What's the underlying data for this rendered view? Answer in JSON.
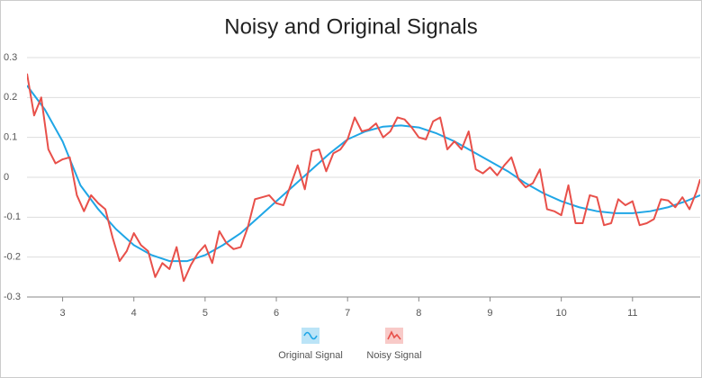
{
  "chart_data": {
    "type": "line",
    "title": "Noisy and Original Signals",
    "xlim": [
      2.5,
      11.95
    ],
    "xticks": [
      3,
      4,
      5,
      6,
      7,
      8,
      9,
      10,
      11
    ],
    "ylim": [
      -0.3,
      0.3
    ],
    "yticks": [
      -0.3,
      -0.2,
      -0.1,
      0,
      0.1,
      0.2,
      0.3
    ],
    "grid": true,
    "legend": "bottom",
    "series": [
      {
        "name": "Original Signal",
        "color": "#1fa6e6",
        "x": [
          2.5,
          2.75,
          3,
          3.25,
          3.5,
          3.75,
          4,
          4.25,
          4.5,
          4.75,
          5,
          5.25,
          5.5,
          5.75,
          6,
          6.25,
          6.5,
          6.75,
          7,
          7.25,
          7.5,
          7.75,
          8,
          8.25,
          8.5,
          8.75,
          9,
          9.25,
          9.5,
          9.75,
          10,
          10.25,
          10.5,
          10.75,
          11,
          11.25,
          11.5,
          11.75,
          11.95
        ],
        "values": [
          0.23,
          0.17,
          0.09,
          -0.02,
          -0.08,
          -0.13,
          -0.17,
          -0.195,
          -0.21,
          -0.21,
          -0.195,
          -0.17,
          -0.14,
          -0.1,
          -0.06,
          -0.02,
          0.02,
          0.06,
          0.095,
          0.115,
          0.127,
          0.13,
          0.125,
          0.11,
          0.09,
          0.065,
          0.04,
          0.015,
          -0.015,
          -0.04,
          -0.06,
          -0.075,
          -0.085,
          -0.09,
          -0.09,
          -0.085,
          -0.075,
          -0.06,
          -0.045
        ]
      },
      {
        "name": "Noisy Signal",
        "color": "#e8504a",
        "x": [
          2.5,
          2.6,
          2.7,
          2.8,
          2.9,
          3,
          3.1,
          3.2,
          3.3,
          3.4,
          3.5,
          3.6,
          3.7,
          3.8,
          3.9,
          4,
          4.1,
          4.2,
          4.3,
          4.4,
          4.5,
          4.6,
          4.7,
          4.8,
          4.9,
          5,
          5.1,
          5.2,
          5.3,
          5.4,
          5.5,
          5.6,
          5.7,
          5.8,
          5.9,
          6,
          6.1,
          6.2,
          6.3,
          6.4,
          6.5,
          6.6,
          6.7,
          6.8,
          6.9,
          7,
          7.1,
          7.2,
          7.3,
          7.4,
          7.5,
          7.6,
          7.7,
          7.8,
          7.9,
          8,
          8.1,
          8.2,
          8.3,
          8.4,
          8.5,
          8.6,
          8.7,
          8.8,
          8.9,
          9,
          9.1,
          9.2,
          9.3,
          9.4,
          9.5,
          9.6,
          9.7,
          9.8,
          9.9,
          10,
          10.1,
          10.2,
          10.3,
          10.4,
          10.5,
          10.6,
          10.7,
          10.8,
          10.9,
          11,
          11.1,
          11.2,
          11.3,
          11.4,
          11.5,
          11.6,
          11.7,
          11.8,
          11.9,
          11.95
        ],
        "values": [
          0.26,
          0.155,
          0.2,
          0.07,
          0.035,
          0.045,
          0.05,
          -0.045,
          -0.085,
          -0.045,
          -0.065,
          -0.08,
          -0.15,
          -0.21,
          -0.185,
          -0.14,
          -0.17,
          -0.185,
          -0.25,
          -0.215,
          -0.23,
          -0.175,
          -0.26,
          -0.22,
          -0.19,
          -0.17,
          -0.215,
          -0.135,
          -0.165,
          -0.18,
          -0.175,
          -0.125,
          -0.055,
          -0.05,
          -0.045,
          -0.065,
          -0.07,
          -0.02,
          0.03,
          -0.03,
          0.065,
          0.07,
          0.015,
          0.06,
          0.07,
          0.095,
          0.15,
          0.115,
          0.12,
          0.135,
          0.1,
          0.115,
          0.15,
          0.145,
          0.125,
          0.1,
          0.095,
          0.14,
          0.15,
          0.07,
          0.09,
          0.07,
          0.115,
          0.02,
          0.01,
          0.025,
          0.005,
          0.03,
          0.05,
          -0.005,
          -0.025,
          -0.015,
          0.02,
          -0.08,
          -0.085,
          -0.095,
          -0.02,
          -0.115,
          -0.115,
          -0.045,
          -0.05,
          -0.12,
          -0.115,
          -0.055,
          -0.07,
          -0.06,
          -0.12,
          -0.115,
          -0.105,
          -0.055,
          -0.058,
          -0.075,
          -0.05,
          -0.08,
          -0.035,
          -0.005
        ]
      }
    ]
  }
}
